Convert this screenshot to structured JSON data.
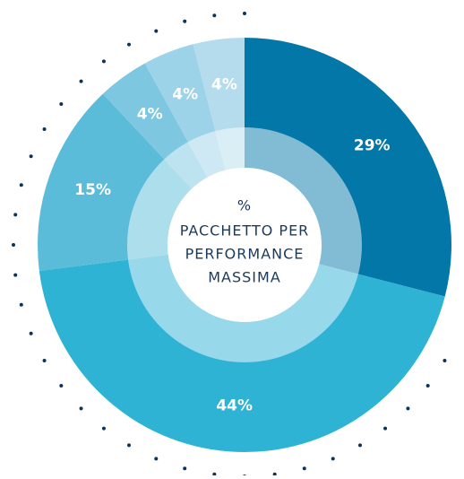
{
  "chart_data": {
    "type": "donut",
    "center_text": [
      "%",
      "PACCHETTO PER",
      "PERFORMANCE",
      "MASSIMA"
    ],
    "values": [
      29,
      44,
      15,
      4,
      4,
      4
    ],
    "value_labels": [
      "29%",
      "44%",
      "15%",
      "4%",
      "4%",
      "4%"
    ],
    "colors": [
      "#0277a8",
      "#2eb3d4",
      "#5bbcd9",
      "#7dc7e0",
      "#9dd3e8",
      "#b5dcec"
    ]
  }
}
